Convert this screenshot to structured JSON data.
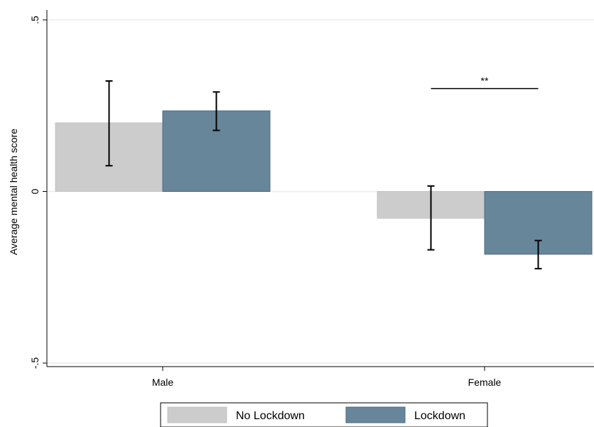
{
  "chart_data": {
    "type": "bar",
    "ylabel": "Average mental health score",
    "ylim": [
      -0.5,
      0.5
    ],
    "yticks": [
      {
        "value": -0.5,
        "label": "-.5"
      },
      {
        "value": 0,
        "label": "0"
      },
      {
        "value": 0.5,
        "label": ".5"
      }
    ],
    "grid": true,
    "categories": [
      "Male",
      "Female"
    ],
    "series": [
      {
        "name": "No Lockdown",
        "color": "#cccccc",
        "values": [
          0.2,
          -0.078
        ],
        "ci_low": [
          0.075,
          -0.17
        ],
        "ci_high": [
          0.322,
          0.016
        ]
      },
      {
        "name": "Lockdown",
        "color": "#67869a",
        "values": [
          0.235,
          -0.183
        ],
        "ci_low": [
          0.178,
          -0.225
        ],
        "ci_high": [
          0.29,
          -0.143
        ]
      }
    ],
    "annotations": [
      {
        "category": "Female",
        "text": "**",
        "y": 0.3
      }
    ],
    "legend_position": "bottom"
  }
}
